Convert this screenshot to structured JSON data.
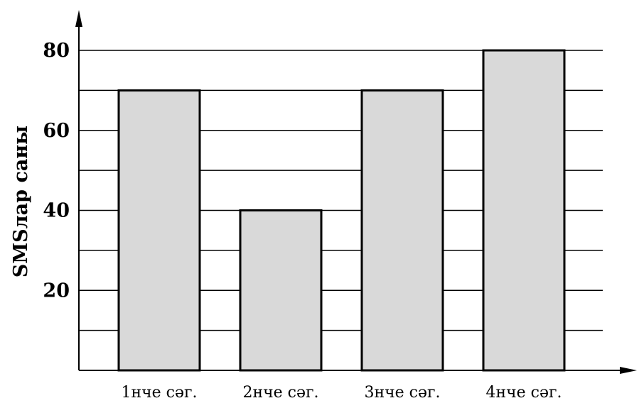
{
  "chart_data": {
    "type": "bar",
    "categories": [
      "1нче сәг.",
      "2нче сәг.",
      "3нче сәг.",
      "4нче сәг."
    ],
    "values": [
      70,
      40,
      70,
      80
    ],
    "title": "",
    "xlabel": "",
    "ylabel": "SMSлар саны",
    "ylim": [
      0,
      80
    ],
    "yticks": [
      20,
      40,
      60,
      80
    ],
    "ytick_labels": [
      "20",
      "40",
      "60",
      "80"
    ],
    "grid_step": 10,
    "grid": true,
    "legend": "none",
    "colors": {
      "bar_fill": "#d9d9d9",
      "bar_edge": "#000000",
      "grid": "#000000"
    }
  }
}
